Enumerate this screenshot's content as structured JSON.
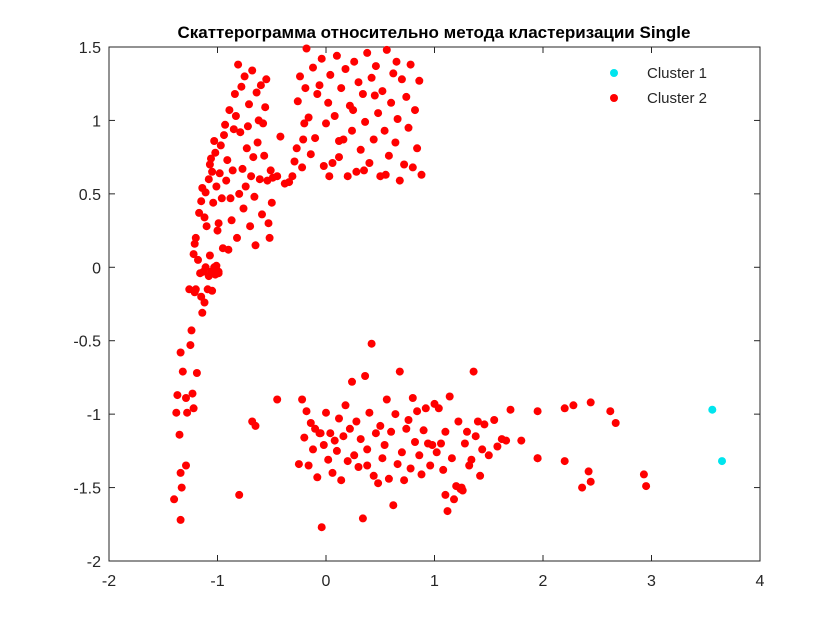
{
  "chart_data": {
    "type": "scatter",
    "title": "Скаттерограмма относительно метода кластеризации Single",
    "xlabel": "",
    "ylabel": "",
    "xlim": [
      -2,
      4
    ],
    "ylim": [
      -2,
      1.5
    ],
    "xticks": [
      -2,
      -1,
      0,
      1,
      2,
      3,
      4
    ],
    "yticks": [
      -2,
      -1.5,
      -1,
      -0.5,
      0,
      0.5,
      1,
      1.5
    ],
    "xtick_labels": [
      "-2",
      "-1",
      "0",
      "1",
      "2",
      "3",
      "4"
    ],
    "ytick_labels": [
      "-2",
      "-1.5",
      "-1",
      "-0.5",
      "0",
      "0.5",
      "1",
      "1.5"
    ],
    "grid": false,
    "legend_position": "top-right",
    "series": [
      {
        "name": "Cluster 1",
        "color": "#00e5ee",
        "points": [
          [
            3.56,
            -0.97
          ],
          [
            3.65,
            -1.32
          ]
        ]
      },
      {
        "name": "Cluster 2",
        "color": "#ff0000",
        "points": [
          [
            -1.4,
            -1.58
          ],
          [
            -1.38,
            -0.99
          ],
          [
            -1.37,
            -0.87
          ],
          [
            -1.35,
            -1.14
          ],
          [
            -1.34,
            -1.72
          ],
          [
            -1.34,
            -1.4
          ],
          [
            -1.33,
            -1.5
          ],
          [
            -1.34,
            -0.58
          ],
          [
            -1.32,
            -0.71
          ],
          [
            -1.29,
            -0.89
          ],
          [
            -1.29,
            -1.35
          ],
          [
            -1.28,
            -0.99
          ],
          [
            -1.26,
            -0.15
          ],
          [
            -1.25,
            -0.53
          ],
          [
            -1.24,
            -0.43
          ],
          [
            -1.23,
            -0.86
          ],
          [
            -1.22,
            -0.96
          ],
          [
            -1.21,
            -0.17
          ],
          [
            -1.2,
            -0.15
          ],
          [
            -1.19,
            -0.72
          ],
          [
            -1.22,
            0.09
          ],
          [
            -1.21,
            0.16
          ],
          [
            -1.2,
            0.2
          ],
          [
            -1.18,
            0.05
          ],
          [
            -1.16,
            -0.04
          ],
          [
            -1.15,
            -0.2
          ],
          [
            -1.14,
            -0.31
          ],
          [
            -1.13,
            -0.03
          ],
          [
            -1.12,
            -0.24
          ],
          [
            -1.11,
            0.0
          ],
          [
            -1.09,
            -0.15
          ],
          [
            -1.08,
            -0.06
          ],
          [
            -1.07,
            0.08
          ],
          [
            -1.06,
            -0.03
          ],
          [
            -1.05,
            -0.16
          ],
          [
            -1.03,
            0.0
          ],
          [
            -1.02,
            -0.05
          ],
          [
            -1.01,
            0.01
          ],
          [
            -0.99,
            -0.04
          ],
          [
            -0.99,
            -0.03
          ],
          [
            -1.17,
            0.37
          ],
          [
            -1.15,
            0.45
          ],
          [
            -1.14,
            0.54
          ],
          [
            -1.12,
            0.34
          ],
          [
            -1.11,
            0.51
          ],
          [
            -1.1,
            0.28
          ],
          [
            -1.08,
            0.6
          ],
          [
            -1.07,
            0.7
          ],
          [
            -1.06,
            0.74
          ],
          [
            -1.05,
            0.65
          ],
          [
            -1.04,
            0.44
          ],
          [
            -1.03,
            0.86
          ],
          [
            -1.02,
            0.78
          ],
          [
            -1.01,
            0.55
          ],
          [
            -1.0,
            0.25
          ],
          [
            -0.99,
            0.3
          ],
          [
            -0.98,
            0.64
          ],
          [
            -0.97,
            0.83
          ],
          [
            -0.96,
            0.47
          ],
          [
            -0.95,
            0.13
          ],
          [
            -0.94,
            0.9
          ],
          [
            -0.93,
            0.97
          ],
          [
            -0.92,
            0.59
          ],
          [
            -0.91,
            0.73
          ],
          [
            -0.9,
            0.12
          ],
          [
            -0.89,
            1.07
          ],
          [
            -0.88,
            0.47
          ],
          [
            -0.87,
            0.32
          ],
          [
            -0.86,
            0.66
          ],
          [
            -0.85,
            0.94
          ],
          [
            -0.84,
            1.18
          ],
          [
            -0.83,
            1.03
          ],
          [
            -0.82,
            0.2
          ],
          [
            -0.81,
            1.38
          ],
          [
            -0.8,
            0.5
          ],
          [
            -0.79,
            0.92
          ],
          [
            -0.78,
            1.23
          ],
          [
            -0.77,
            0.67
          ],
          [
            -0.76,
            0.4
          ],
          [
            -0.75,
            1.3
          ],
          [
            -0.74,
            0.55
          ],
          [
            -0.73,
            0.81
          ],
          [
            -0.72,
            0.96
          ],
          [
            -0.71,
            1.11
          ],
          [
            -0.7,
            0.28
          ],
          [
            -0.69,
            0.62
          ],
          [
            -0.68,
            1.34
          ],
          [
            -0.67,
            0.75
          ],
          [
            -0.66,
            0.48
          ],
          [
            -0.65,
            0.15
          ],
          [
            -0.64,
            1.19
          ],
          [
            -0.63,
            0.85
          ],
          [
            -0.62,
            1.0
          ],
          [
            -0.61,
            0.6
          ],
          [
            -0.6,
            1.24
          ],
          [
            -0.59,
            0.36
          ],
          [
            -0.58,
            0.98
          ],
          [
            -0.57,
            0.76
          ],
          [
            -0.56,
            1.09
          ],
          [
            -0.55,
            1.28
          ],
          [
            -0.54,
            0.59
          ],
          [
            -0.53,
            0.3
          ],
          [
            -0.52,
            0.2
          ],
          [
            -0.51,
            0.66
          ],
          [
            -0.5,
            0.44
          ],
          [
            -0.49,
            0.61
          ],
          [
            -0.45,
            0.62
          ],
          [
            -0.42,
            0.89
          ],
          [
            -0.38,
            0.57
          ],
          [
            -0.34,
            0.58
          ],
          [
            -0.31,
            0.62
          ],
          [
            -0.29,
            0.72
          ],
          [
            -0.27,
            0.81
          ],
          [
            -0.26,
            1.13
          ],
          [
            -0.24,
            1.3
          ],
          [
            -0.22,
            0.68
          ],
          [
            -0.21,
            0.87
          ],
          [
            -0.19,
            1.22
          ],
          [
            -0.18,
            1.49
          ],
          [
            -0.16,
            1.02
          ],
          [
            -0.14,
            0.77
          ],
          [
            -0.12,
            1.36
          ],
          [
            -0.1,
            0.88
          ],
          [
            -0.08,
            1.18
          ],
          [
            -0.06,
            1.24
          ],
          [
            -0.04,
            1.42
          ],
          [
            -0.02,
            0.69
          ],
          [
            0.0,
            0.98
          ],
          [
            0.02,
            1.12
          ],
          [
            0.04,
            1.31
          ],
          [
            0.06,
            0.71
          ],
          [
            0.08,
            1.03
          ],
          [
            0.1,
            1.44
          ],
          [
            0.12,
            0.75
          ],
          [
            0.14,
            1.22
          ],
          [
            0.16,
            0.87
          ],
          [
            0.18,
            1.35
          ],
          [
            0.2,
            0.62
          ],
          [
            0.22,
            1.1
          ],
          [
            0.24,
            0.93
          ],
          [
            0.26,
            1.4
          ],
          [
            0.28,
            0.65
          ],
          [
            0.3,
            1.26
          ],
          [
            0.32,
            0.8
          ],
          [
            0.34,
            1.18
          ],
          [
            0.36,
            0.99
          ],
          [
            0.38,
            1.46
          ],
          [
            0.4,
            0.71
          ],
          [
            0.42,
            1.29
          ],
          [
            0.44,
            0.87
          ],
          [
            0.46,
            1.37
          ],
          [
            0.48,
            1.05
          ],
          [
            0.5,
            0.62
          ],
          [
            0.52,
            1.2
          ],
          [
            0.54,
            0.93
          ],
          [
            0.56,
            1.48
          ],
          [
            0.58,
            0.76
          ],
          [
            0.6,
            1.12
          ],
          [
            0.62,
            1.32
          ],
          [
            0.64,
            0.85
          ],
          [
            0.66,
            1.01
          ],
          [
            0.68,
            0.59
          ],
          [
            0.7,
            1.28
          ],
          [
            0.72,
            0.7
          ],
          [
            0.74,
            1.16
          ],
          [
            0.76,
            0.95
          ],
          [
            0.78,
            1.38
          ],
          [
            0.8,
            0.68
          ],
          [
            0.82,
            1.07
          ],
          [
            0.84,
            0.81
          ],
          [
            0.86,
            1.27
          ],
          [
            0.88,
            0.63
          ],
          [
            0.35,
            0.66
          ],
          [
            0.55,
            0.63
          ],
          [
            0.12,
            0.86
          ],
          [
            -0.2,
            0.98
          ],
          [
            0.03,
            0.62
          ],
          [
            0.45,
            1.17
          ],
          [
            0.65,
            1.4
          ],
          [
            0.25,
            1.07
          ],
          [
            -0.8,
            -1.55
          ],
          [
            -0.68,
            -1.05
          ],
          [
            -0.65,
            -1.08
          ],
          [
            -0.45,
            -0.9
          ],
          [
            -0.25,
            -1.34
          ],
          [
            -0.22,
            -0.9
          ],
          [
            -0.2,
            -1.16
          ],
          [
            -0.18,
            -0.98
          ],
          [
            -0.16,
            -1.35
          ],
          [
            -0.14,
            -1.06
          ],
          [
            -0.12,
            -1.24
          ],
          [
            -0.1,
            -1.1
          ],
          [
            -0.08,
            -1.43
          ],
          [
            -0.06,
            -1.13
          ],
          [
            -0.04,
            -1.77
          ],
          [
            -0.02,
            -1.21
          ],
          [
            0.0,
            -0.99
          ],
          [
            0.02,
            -1.31
          ],
          [
            0.04,
            -1.13
          ],
          [
            0.06,
            -1.4
          ],
          [
            0.08,
            -1.18
          ],
          [
            0.1,
            -1.25
          ],
          [
            0.12,
            -1.03
          ],
          [
            0.14,
            -1.45
          ],
          [
            0.16,
            -1.15
          ],
          [
            0.18,
            -0.94
          ],
          [
            0.2,
            -1.32
          ],
          [
            0.22,
            -1.1
          ],
          [
            0.24,
            -0.78
          ],
          [
            0.26,
            -1.28
          ],
          [
            0.28,
            -1.05
          ],
          [
            0.3,
            -1.36
          ],
          [
            0.32,
            -1.17
          ],
          [
            0.34,
            -1.71
          ],
          [
            0.36,
            -0.74
          ],
          [
            0.38,
            -1.24
          ],
          [
            0.4,
            -0.99
          ],
          [
            0.42,
            -0.52
          ],
          [
            0.44,
            -1.42
          ],
          [
            0.46,
            -1.13
          ],
          [
            0.48,
            -1.47
          ],
          [
            0.5,
            -1.08
          ],
          [
            0.52,
            -1.3
          ],
          [
            0.54,
            -1.21
          ],
          [
            0.56,
            -0.9
          ],
          [
            0.58,
            -1.44
          ],
          [
            0.6,
            -1.12
          ],
          [
            0.62,
            -1.62
          ],
          [
            0.64,
            -1.0
          ],
          [
            0.66,
            -1.34
          ],
          [
            0.68,
            -0.71
          ],
          [
            0.7,
            -1.26
          ],
          [
            0.72,
            -1.45
          ],
          [
            0.74,
            -1.1
          ],
          [
            0.76,
            -1.04
          ],
          [
            0.78,
            -1.37
          ],
          [
            0.8,
            -0.89
          ],
          [
            0.82,
            -1.19
          ],
          [
            0.84,
            -0.98
          ],
          [
            0.86,
            -1.28
          ],
          [
            0.88,
            -1.41
          ],
          [
            0.9,
            -1.11
          ],
          [
            0.92,
            -0.96
          ],
          [
            0.94,
            -1.2
          ],
          [
            0.96,
            -1.35
          ],
          [
            0.98,
            -1.21
          ],
          [
            1.0,
            -0.93
          ],
          [
            1.02,
            -1.26
          ],
          [
            1.04,
            -0.96
          ],
          [
            1.06,
            -1.2
          ],
          [
            1.08,
            -1.38
          ],
          [
            1.1,
            -1.12
          ],
          [
            1.12,
            -1.66
          ],
          [
            1.14,
            -0.88
          ],
          [
            1.16,
            -1.3
          ],
          [
            1.18,
            -1.58
          ],
          [
            1.2,
            -1.49
          ],
          [
            1.22,
            -1.05
          ],
          [
            1.24,
            -1.51
          ],
          [
            1.26,
            -1.52
          ],
          [
            1.28,
            -1.2
          ],
          [
            1.3,
            -1.12
          ],
          [
            1.32,
            -1.35
          ],
          [
            1.34,
            -1.31
          ],
          [
            1.36,
            -0.71
          ],
          [
            1.38,
            -1.15
          ],
          [
            1.4,
            -1.05
          ],
          [
            1.42,
            -1.42
          ],
          [
            1.44,
            -1.24
          ],
          [
            1.46,
            -1.07
          ],
          [
            1.5,
            -1.28
          ],
          [
            1.55,
            -1.04
          ],
          [
            1.58,
            -1.22
          ],
          [
            1.62,
            -1.17
          ],
          [
            1.66,
            -1.18
          ],
          [
            1.7,
            -0.97
          ],
          [
            1.8,
            -1.18
          ],
          [
            1.95,
            -0.98
          ],
          [
            1.95,
            -1.3
          ],
          [
            2.2,
            -0.96
          ],
          [
            2.2,
            -1.32
          ],
          [
            2.28,
            -0.94
          ],
          [
            2.36,
            -1.5
          ],
          [
            2.42,
            -1.39
          ],
          [
            2.44,
            -0.92
          ],
          [
            2.44,
            -1.46
          ],
          [
            2.62,
            -0.98
          ],
          [
            2.67,
            -1.06
          ],
          [
            2.93,
            -1.41
          ],
          [
            2.95,
            -1.49
          ],
          [
            1.95,
            -1.3
          ],
          [
            1.25,
            -1.5
          ],
          [
            1.1,
            -1.55
          ],
          [
            0.38,
            -1.35
          ],
          [
            -0.05,
            -1.13
          ]
        ]
      }
    ]
  }
}
